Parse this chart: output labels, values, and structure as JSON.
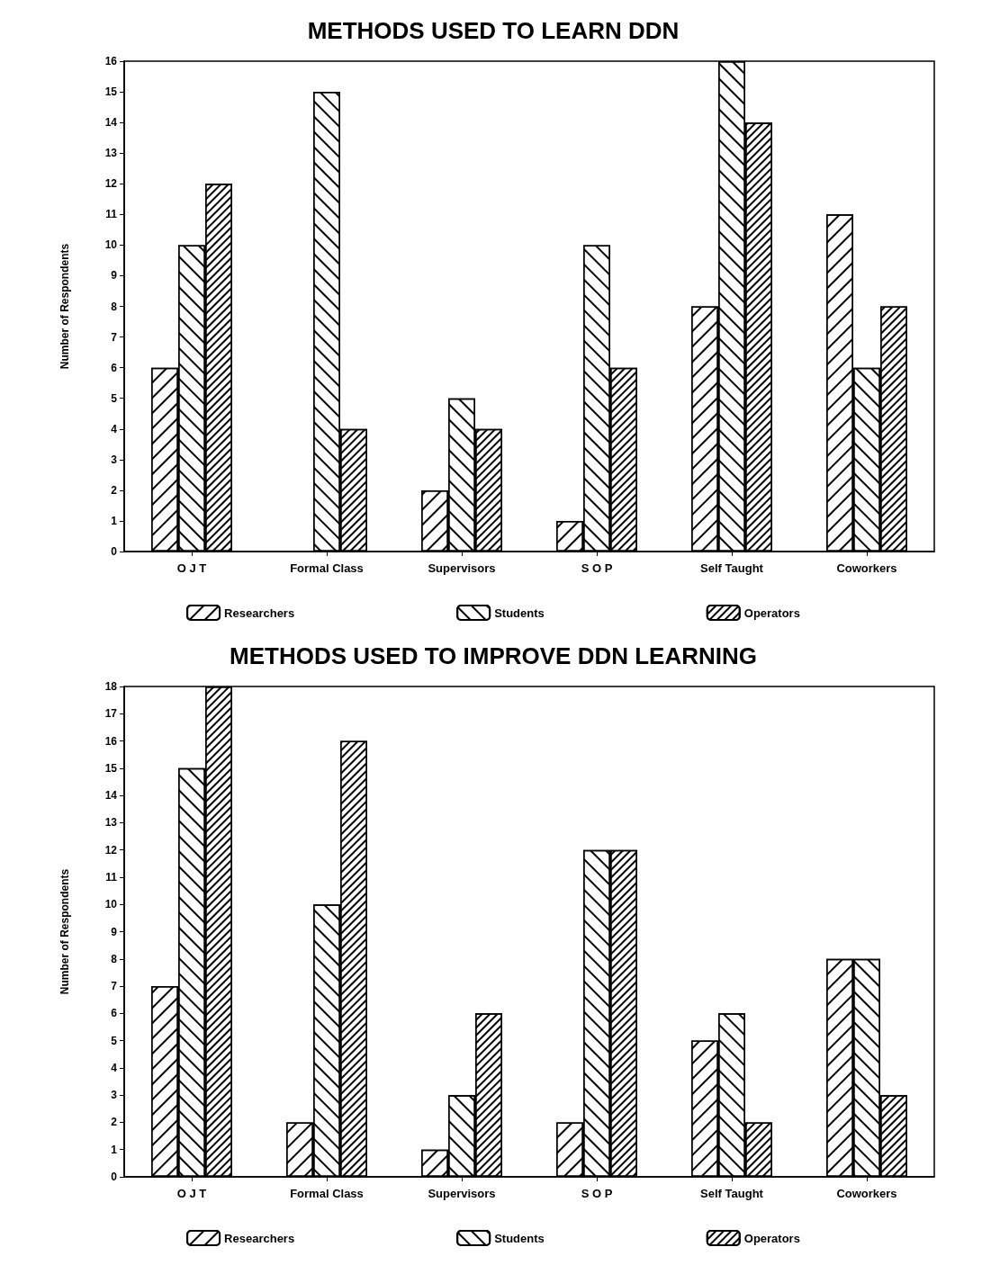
{
  "chart_data": [
    {
      "type": "bar",
      "title": "METHODS USED TO LEARN DDN",
      "ylabel": "Number of Respondents",
      "categories": [
        "O J T",
        "Formal Class",
        "Supervisors",
        "S O P",
        "Self Taught",
        "Coworkers"
      ],
      "series": [
        {
          "name": "Researchers",
          "color": "#ffffff",
          "values": [
            6,
            0,
            2,
            1,
            8,
            11
          ]
        },
        {
          "name": "Students",
          "color": "#ffffff",
          "values": [
            10,
            15,
            5,
            10,
            16,
            6
          ]
        },
        {
          "name": "Operators",
          "color": "#ffffff",
          "values": [
            12,
            4,
            4,
            6,
            14,
            8
          ]
        }
      ],
      "ylim": [
        0,
        16
      ],
      "yticks": [
        0,
        1,
        2,
        3,
        4,
        5,
        6,
        7,
        8,
        9,
        10,
        11,
        12,
        13,
        14,
        15,
        16
      ],
      "grid": false,
      "legend": "bottom"
    },
    {
      "type": "bar",
      "title": "METHODS USED TO IMPROVE DDN LEARNING",
      "ylabel": "Number of Respondents",
      "categories": [
        "O J T",
        "Formal Class",
        "Supervisors",
        "S O P",
        "Self Taught",
        "Coworkers"
      ],
      "series": [
        {
          "name": "Researchers",
          "color": "#ffffff",
          "values": [
            7,
            2,
            1,
            2,
            5,
            8
          ]
        },
        {
          "name": "Students",
          "color": "#ffffff",
          "values": [
            15,
            10,
            3,
            12,
            6,
            8
          ]
        },
        {
          "name": "Operators",
          "color": "#ffffff",
          "values": [
            18,
            16,
            6,
            12,
            2,
            3
          ]
        }
      ],
      "ylim": [
        0,
        18
      ],
      "yticks": [
        0,
        1,
        2,
        3,
        4,
        5,
        6,
        7,
        8,
        9,
        10,
        11,
        12,
        13,
        14,
        15,
        16,
        17,
        18
      ],
      "grid": false,
      "legend": "bottom"
    }
  ]
}
